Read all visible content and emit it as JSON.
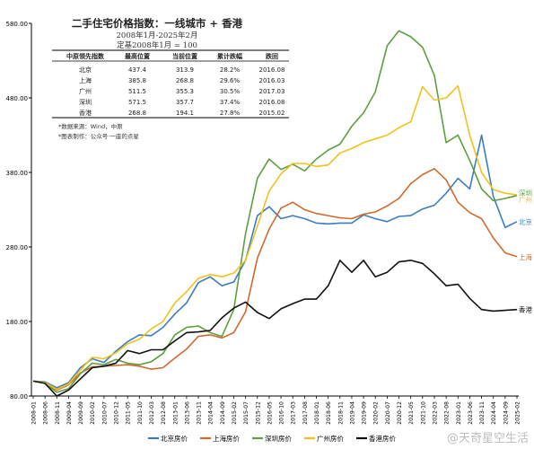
{
  "chart_data": {
    "type": "line",
    "title": "二手住宅价格指数：一线城市 + 香港",
    "subtitle_period": "2008年1月-2025年2月",
    "subtitle_base": "定基2008年1月 = 100",
    "ylim": [
      80,
      580
    ],
    "yticks": [
      "580.00",
      "480.00",
      "380.00",
      "280.00",
      "180.00",
      "80.00"
    ],
    "ytick_values": [
      580,
      480,
      380,
      280,
      180,
      80
    ],
    "grid": false,
    "legend_position": "bottom",
    "x_labels": [
      "2008-01",
      "2008-06",
      "2008-11",
      "2009-04",
      "2009-09",
      "2010-02",
      "2010-07",
      "2010-12",
      "2011-05",
      "2011-10",
      "2012-03",
      "2012-08",
      "2013-01",
      "2013-06",
      "2013-11",
      "2014-04",
      "2014-09",
      "2015-02",
      "2015-07",
      "2015-12",
      "2016-05",
      "2016-10",
      "2017-03",
      "2017-08",
      "2018-01",
      "2018-06",
      "2018-11",
      "2019-04",
      "2019-09",
      "2020-02",
      "2020-07",
      "2020-12",
      "2021-05",
      "2021-10",
      "2022-03",
      "2022-08",
      "2023-01",
      "2023-06",
      "2023-11",
      "2024-04",
      "2024-09",
      "2025-02"
    ],
    "series": [
      {
        "name": "北京房价",
        "color": "#3b7dbf",
        "end_label": "北京",
        "values": [
          100,
          99,
          91,
          98,
          118,
          130,
          125,
          140,
          153,
          162,
          161,
          172,
          190,
          205,
          232,
          240,
          228,
          233,
          262,
          322,
          334,
          318,
          322,
          318,
          312,
          311,
          312,
          312,
          323,
          318,
          314,
          321,
          322,
          331,
          336,
          352,
          372,
          358,
          430,
          348,
          306,
          314
        ]
      },
      {
        "name": "上海房价",
        "color": "#d06a2c",
        "end_label": "上海",
        "values": [
          100,
          98,
          88,
          95,
          111,
          119,
          120,
          121,
          122,
          120,
          116,
          118,
          131,
          143,
          160,
          162,
          158,
          165,
          193,
          265,
          304,
          332,
          340,
          330,
          325,
          322,
          319,
          318,
          324,
          327,
          335,
          345,
          365,
          377,
          385,
          370,
          340,
          326,
          318,
          292,
          272,
          267
        ]
      },
      {
        "name": "深圳房价",
        "color": "#5f9e3f",
        "end_label": "深圳",
        "values": [
          100,
          97,
          85,
          90,
          110,
          124,
          122,
          129,
          124,
          122,
          126,
          137,
          162,
          172,
          174,
          165,
          160,
          196,
          298,
          372,
          398,
          384,
          391,
          382,
          398,
          410,
          418,
          442,
          460,
          488,
          550,
          570,
          562,
          548,
          510,
          420,
          430,
          396,
          358,
          342,
          345,
          349
        ]
      },
      {
        "name": "广州房价",
        "color": "#f2c21a",
        "end_label": "广州",
        "values": [
          100,
          98,
          89,
          96,
          115,
          132,
          130,
          138,
          150,
          156,
          170,
          180,
          205,
          220,
          238,
          243,
          240,
          245,
          262,
          308,
          355,
          378,
          392,
          392,
          388,
          390,
          406,
          412,
          420,
          425,
          430,
          440,
          448,
          495,
          477,
          480,
          496,
          430,
          380,
          357,
          352,
          350
        ]
      },
      {
        "name": "香港房价",
        "color": "#111111",
        "end_label": "香港",
        "values": [
          100,
          97,
          80,
          88,
          103,
          118,
          120,
          124,
          141,
          137,
          142,
          142,
          154,
          165,
          166,
          168,
          185,
          198,
          206,
          192,
          184,
          197,
          204,
          210,
          210,
          228,
          262,
          246,
          262,
          240,
          246,
          260,
          262,
          258,
          244,
          228,
          230,
          211,
          196,
          194,
          195,
          196
        ]
      }
    ],
    "table": {
      "headers": [
        "中原领先指数",
        "最高位置",
        "当前位置",
        "累计跌幅",
        "跌回"
      ],
      "rows": [
        [
          "北京",
          "437.4",
          "313.9",
          "28.2%",
          "2016.08"
        ],
        [
          "上海",
          "385.8",
          "268.8",
          "29.6%",
          "2016.03"
        ],
        [
          "广州",
          "511.5",
          "355.3",
          "30.5%",
          "2017.03"
        ],
        [
          "深圳",
          "571.5",
          "357.7",
          "37.4%",
          "2016.08"
        ],
        [
          "香港",
          "268.8",
          "194.1",
          "27.8%",
          "2015.02"
        ]
      ],
      "notes": [
        "*数据来源：Wind，中原",
        "*图表制作：公众号·一座的点星"
      ]
    }
  },
  "watermark": "@天奇星空生活"
}
